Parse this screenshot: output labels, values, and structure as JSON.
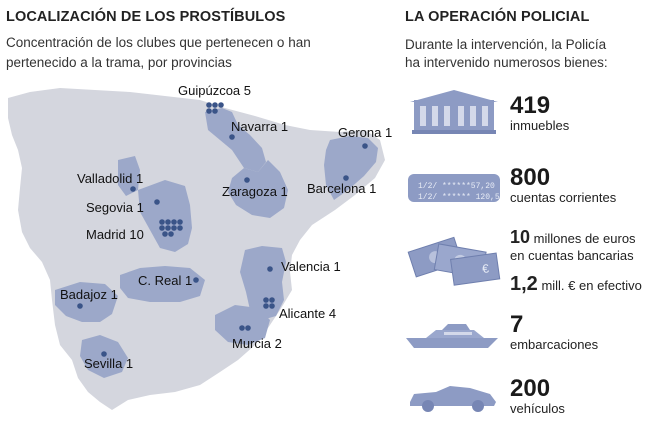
{
  "left": {
    "title": "LOCALIZACIÓN DE LOS PROSTÍBULOS",
    "subtitle_line1": "Concentración de los clubes que pertenecen o han",
    "subtitle_line2": "pertenecido a la trama, por provincias"
  },
  "right": {
    "title": "LA OPERACIÓN POLICIAL",
    "subtitle_line1": "Durante la intervención, la Policía",
    "subtitle_line2": "ha intervenido numerosos bienes:"
  },
  "provinces": [
    {
      "label": "Guipúzcoa 5",
      "count": 5
    },
    {
      "label": "Navarra 1",
      "count": 1
    },
    {
      "label": "Gerona 1",
      "count": 1
    },
    {
      "label": "Zaragoza 1",
      "count": 1
    },
    {
      "label": "Barcelona 1",
      "count": 1
    },
    {
      "label": "Valladolid 1",
      "count": 1
    },
    {
      "label": "Segovia 1",
      "count": 1
    },
    {
      "label": "Madrid 10",
      "count": 10
    },
    {
      "label": "C. Real 1",
      "count": 1
    },
    {
      "label": "Valencia 1",
      "count": 1
    },
    {
      "label": "Badajoz 1",
      "count": 1
    },
    {
      "label": "Alicante 4",
      "count": 4
    },
    {
      "label": "Murcia 2",
      "count": 2
    },
    {
      "label": "Sevilla 1",
      "count": 1
    }
  ],
  "stats": {
    "inmuebles": {
      "num": "419",
      "desc": "inmuebles"
    },
    "cuentas": {
      "num": "800",
      "desc": "cuentas corrientes"
    },
    "millones": {
      "num": "10",
      "desc_a": "millones de euros",
      "desc_b": "en cuentas bancarias"
    },
    "efectivo": {
      "num": "1,2",
      "desc": "mill. € en efectivo"
    },
    "embarcaciones": {
      "num": "7",
      "desc": "embarcaciones"
    },
    "vehiculos": {
      "num": "200",
      "desc": "vehículos"
    }
  },
  "card_text": {
    "line1": "1/2/     ******57,20",
    "line2": "1/2/     ****** 120,50"
  },
  "colors": {
    "map_bg": "#d4d6de",
    "region": "#9ca8c9",
    "dot": "#3a5488",
    "icon": "#8d9bc4"
  }
}
